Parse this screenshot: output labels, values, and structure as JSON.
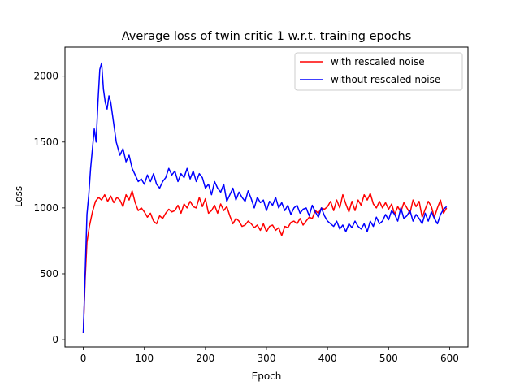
{
  "chart_data": {
    "type": "line",
    "title": "Average loss of twin critic 1 w.r.t. training epochs",
    "xlabel": "Epoch",
    "ylabel": "Loss",
    "xlim": [
      -30,
      630
    ],
    "ylim": [
      -55,
      2220
    ],
    "xticks": [
      0,
      100,
      200,
      300,
      400,
      500,
      600
    ],
    "yticks": [
      0,
      500,
      1000,
      1500,
      2000
    ],
    "grid": false,
    "legend_position": "top-right",
    "series": [
      {
        "name": "with rescaled noise",
        "color": "#ff0000",
        "x": [
          0,
          3,
          6,
          10,
          15,
          20,
          25,
          30,
          35,
          40,
          45,
          50,
          55,
          60,
          65,
          70,
          75,
          80,
          85,
          90,
          95,
          100,
          105,
          110,
          115,
          120,
          125,
          130,
          135,
          140,
          145,
          150,
          155,
          160,
          165,
          170,
          175,
          180,
          185,
          190,
          195,
          200,
          205,
          210,
          215,
          220,
          225,
          230,
          235,
          240,
          245,
          250,
          255,
          260,
          265,
          270,
          275,
          280,
          285,
          290,
          295,
          300,
          305,
          310,
          315,
          320,
          325,
          330,
          335,
          340,
          345,
          350,
          355,
          360,
          365,
          370,
          375,
          380,
          385,
          390,
          395,
          400,
          405,
          410,
          415,
          420,
          425,
          430,
          435,
          440,
          445,
          450,
          455,
          460,
          465,
          470,
          475,
          480,
          485,
          490,
          495,
          500,
          505,
          510,
          515,
          520,
          525,
          530,
          535,
          540,
          545,
          550,
          555,
          560,
          565,
          570,
          575,
          580,
          585,
          590,
          595
        ],
        "y": [
          50,
          450,
          740,
          860,
          970,
          1050,
          1080,
          1060,
          1100,
          1050,
          1090,
          1040,
          1080,
          1060,
          1010,
          1100,
          1060,
          1130,
          1040,
          980,
          1000,
          970,
          930,
          960,
          900,
          880,
          940,
          920,
          960,
          990,
          970,
          980,
          1020,
          960,
          1030,
          1000,
          1050,
          1010,
          1000,
          1080,
          1010,
          1070,
          960,
          980,
          1020,
          960,
          1030,
          980,
          1010,
          940,
          880,
          920,
          900,
          860,
          870,
          900,
          880,
          850,
          870,
          830,
          880,
          820,
          860,
          870,
          830,
          850,
          790,
          860,
          850,
          890,
          900,
          880,
          920,
          870,
          900,
          930,
          920,
          980,
          960,
          1000,
          990,
          1010,
          1050,
          980,
          1060,
          1000,
          1100,
          1030,
          970,
          1050,
          980,
          1060,
          1020,
          1100,
          1060,
          1110,
          1030,
          1000,
          1050,
          1000,
          1040,
          990,
          1030,
          950,
          1010,
          970,
          1040,
          1000,
          960,
          1060,
          1010,
          1050,
          930,
          990,
          1050,
          1010,
          930,
          1000,
          1060,
          960,
          1000
        ]
      },
      {
        "name": "without rescaled noise",
        "color": "#0000ff",
        "x": [
          0,
          3,
          6,
          9,
          12,
          15,
          18,
          21,
          24,
          27,
          30,
          33,
          36,
          39,
          42,
          45,
          48,
          51,
          54,
          57,
          60,
          65,
          70,
          75,
          80,
          85,
          90,
          95,
          100,
          105,
          110,
          115,
          120,
          125,
          130,
          135,
          140,
          145,
          150,
          155,
          160,
          165,
          170,
          175,
          180,
          185,
          190,
          195,
          200,
          205,
          210,
          215,
          220,
          225,
          230,
          235,
          240,
          245,
          250,
          255,
          260,
          265,
          270,
          275,
          280,
          285,
          290,
          295,
          300,
          305,
          310,
          315,
          320,
          325,
          330,
          335,
          340,
          345,
          350,
          355,
          360,
          365,
          370,
          375,
          380,
          385,
          390,
          395,
          400,
          405,
          410,
          415,
          420,
          425,
          430,
          435,
          440,
          445,
          450,
          455,
          460,
          465,
          470,
          475,
          480,
          485,
          490,
          495,
          500,
          505,
          510,
          515,
          520,
          525,
          530,
          535,
          540,
          545,
          550,
          555,
          560,
          565,
          570,
          575,
          580,
          585,
          590,
          595
        ],
        "y": [
          50,
          500,
          950,
          1100,
          1300,
          1450,
          1600,
          1500,
          1800,
          2050,
          2100,
          1900,
          1800,
          1750,
          1850,
          1800,
          1700,
          1600,
          1500,
          1450,
          1400,
          1450,
          1350,
          1400,
          1300,
          1250,
          1200,
          1220,
          1180,
          1250,
          1200,
          1260,
          1180,
          1150,
          1200,
          1230,
          1300,
          1250,
          1280,
          1200,
          1260,
          1230,
          1300,
          1220,
          1280,
          1200,
          1260,
          1230,
          1150,
          1180,
          1100,
          1200,
          1150,
          1120,
          1180,
          1050,
          1100,
          1150,
          1060,
          1120,
          1080,
          1050,
          1130,
          1070,
          1000,
          1080,
          1040,
          1060,
          980,
          1050,
          1020,
          1080,
          1000,
          1040,
          980,
          1020,
          950,
          1000,
          1020,
          960,
          990,
          1000,
          940,
          1020,
          970,
          930,
          1000,
          940,
          900,
          880,
          860,
          900,
          840,
          870,
          820,
          880,
          850,
          900,
          860,
          840,
          880,
          820,
          900,
          860,
          930,
          880,
          900,
          950,
          910,
          980,
          950,
          900,
          1000,
          920,
          940,
          980,
          900,
          950,
          920,
          880,
          960,
          900,
          970,
          920,
          880,
          950,
          990,
          1010
        ]
      }
    ]
  }
}
